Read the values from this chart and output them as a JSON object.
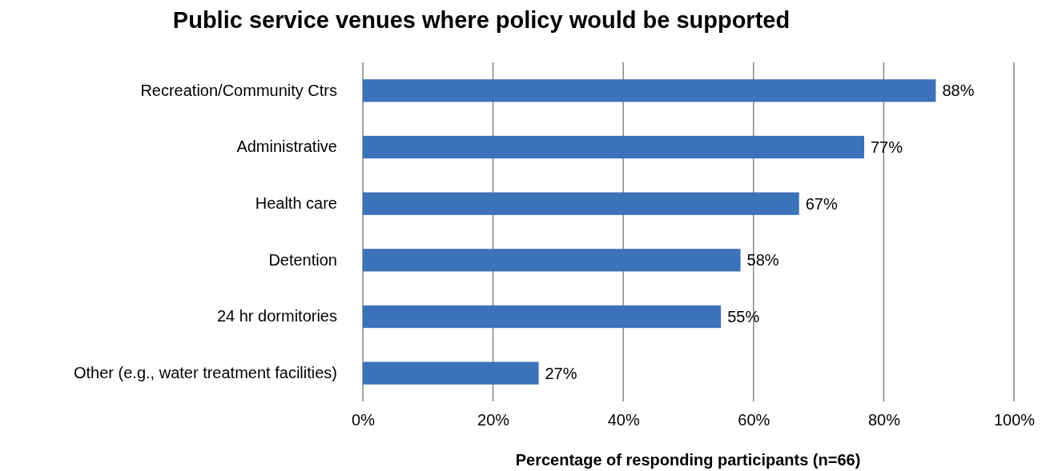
{
  "chart_data": {
    "type": "bar",
    "orientation": "horizontal",
    "title": "Public service venues where policy would be supported",
    "xlabel": "Percentage of responding participants (n=66)",
    "categories": [
      "Recreation/Community Ctrs",
      "Administrative",
      "Health care",
      "Detention",
      "24 hr dormitories",
      "Other (e.g., water treatment facilities)"
    ],
    "values": [
      88,
      77,
      67,
      58,
      55,
      27
    ],
    "value_labels": [
      "88%",
      "77%",
      "67%",
      "58%",
      "55%",
      "27%"
    ],
    "color": "#3c72b9",
    "xlim": [
      0,
      100
    ],
    "xticks": [
      {
        "value": 0,
        "label": "0%"
      },
      {
        "value": 20,
        "label": "20%"
      },
      {
        "value": 40,
        "label": "40%"
      },
      {
        "value": 60,
        "label": "60%"
      },
      {
        "value": 80,
        "label": "80%"
      },
      {
        "value": 100,
        "label": "100%"
      }
    ],
    "grid": "x"
  }
}
